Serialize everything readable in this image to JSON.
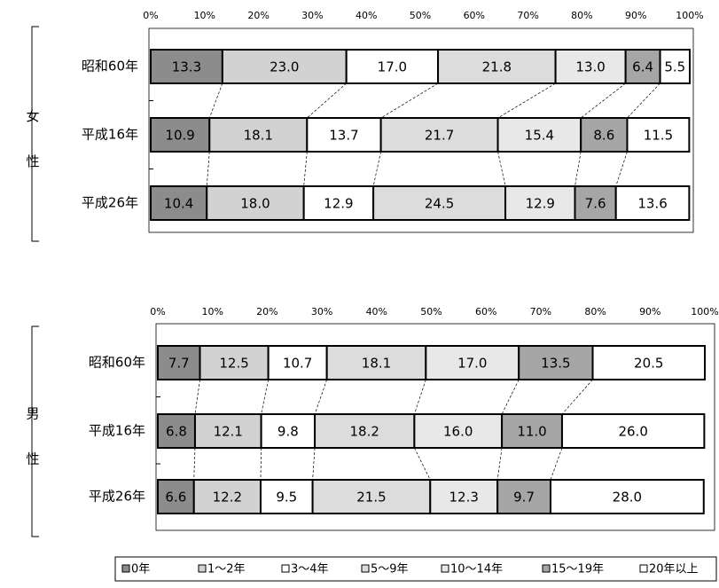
{
  "chart_data": [
    {
      "type": "stacked-bar-horizontal",
      "group_label": "女性",
      "categories": [
        "昭和60年",
        "平成16年",
        "平成26年"
      ],
      "xlim": [
        0,
        100
      ],
      "xticks": [
        {
          "value": 0,
          "label": "0%"
        },
        {
          "value": 10,
          "label": "10%"
        },
        {
          "value": 20,
          "label": "20%"
        },
        {
          "value": 30,
          "label": "30%"
        },
        {
          "value": 40,
          "label": "40%"
        },
        {
          "value": 50,
          "label": "50%"
        },
        {
          "value": 60,
          "label": "60%"
        },
        {
          "value": 70,
          "label": "70%"
        },
        {
          "value": 80,
          "label": "80%"
        },
        {
          "value": 90,
          "label": "90%"
        },
        {
          "value": 100,
          "label": "100%"
        }
      ],
      "series": [
        {
          "name": "0年",
          "color": "#8c8c8c",
          "values": [
            13.3,
            10.9,
            10.4
          ],
          "value_labels": [
            "13.3",
            "10.9",
            "10.4"
          ]
        },
        {
          "name": "1～2年",
          "color": "#d2d2d2",
          "values": [
            23,
            18.1,
            18
          ],
          "value_labels": [
            "23.0",
            "18.1",
            "18.0"
          ]
        },
        {
          "name": "3～4年",
          "color": "#ffffff",
          "values": [
            17,
            13.7,
            12.9
          ],
          "value_labels": [
            "17.0",
            "13.7",
            "12.9"
          ]
        },
        {
          "name": "5～9年",
          "color": "#dcdcdc",
          "values": [
            21.8,
            21.7,
            24.5
          ],
          "value_labels": [
            "21.8",
            "21.7",
            "24.5"
          ]
        },
        {
          "name": "10～14年",
          "color": "#e8e8e8",
          "values": [
            13,
            15.4,
            12.9
          ],
          "value_labels": [
            "13.0",
            "15.4",
            "12.9"
          ]
        },
        {
          "name": "15～19年",
          "color": "#a6a6a6",
          "values": [
            6.4,
            8.6,
            7.6
          ],
          "value_labels": [
            "6.4",
            "8.6",
            "7.6"
          ]
        },
        {
          "name": "20年以上",
          "color": "#ffffff",
          "values": [
            5.5,
            11.5,
            13.6
          ],
          "value_labels": [
            "5.5",
            "11.5",
            "13.6"
          ]
        }
      ]
    },
    {
      "type": "stacked-bar-horizontal",
      "group_label": "男性",
      "categories": [
        "昭和60年",
        "平成16年",
        "平成26年"
      ],
      "xlim": [
        0,
        100
      ],
      "xticks": [
        {
          "value": 0,
          "label": "0%"
        },
        {
          "value": 10,
          "label": "10%"
        },
        {
          "value": 20,
          "label": "20%"
        },
        {
          "value": 30,
          "label": "30%"
        },
        {
          "value": 40,
          "label": "40%"
        },
        {
          "value": 50,
          "label": "50%"
        },
        {
          "value": 60,
          "label": "60%"
        },
        {
          "value": 70,
          "label": "70%"
        },
        {
          "value": 80,
          "label": "80%"
        },
        {
          "value": 90,
          "label": "90%"
        },
        {
          "value": 100,
          "label": "100%"
        }
      ],
      "series": [
        {
          "color": "#8c8c8c",
          "values": [
            7.7,
            6.8,
            6.6
          ],
          "value_labels": [
            "7.7",
            "6.8",
            "6.6"
          ]
        },
        {
          "color": "#d2d2d2",
          "values": [
            12.5,
            12.1,
            12.2
          ],
          "value_labels": [
            "12.5",
            "12.1",
            "12.2"
          ]
        },
        {
          "color": "#ffffff",
          "values": [
            10.7,
            9.8,
            9.5
          ],
          "value_labels": [
            "10.7",
            "9.8",
            "9.5"
          ]
        },
        {
          "color": "#dcdcdc",
          "values": [
            18.1,
            18.2,
            21.5
          ],
          "value_labels": [
            "18.1",
            "18.2",
            "21.5"
          ]
        },
        {
          "color": "#e8e8e8",
          "values": [
            17,
            16,
            12.3
          ],
          "value_labels": [
            "17.0",
            "16.0",
            "12.3"
          ]
        },
        {
          "color": "#a6a6a6",
          "values": [
            13.5,
            11,
            9.7
          ],
          "value_labels": [
            "13.5",
            "11.0",
            "9.7"
          ]
        },
        {
          "color": "#ffffff",
          "values": [
            20.5,
            26,
            28
          ],
          "value_labels": [
            "20.5",
            "26.0",
            "28.0"
          ]
        }
      ]
    }
  ]
}
